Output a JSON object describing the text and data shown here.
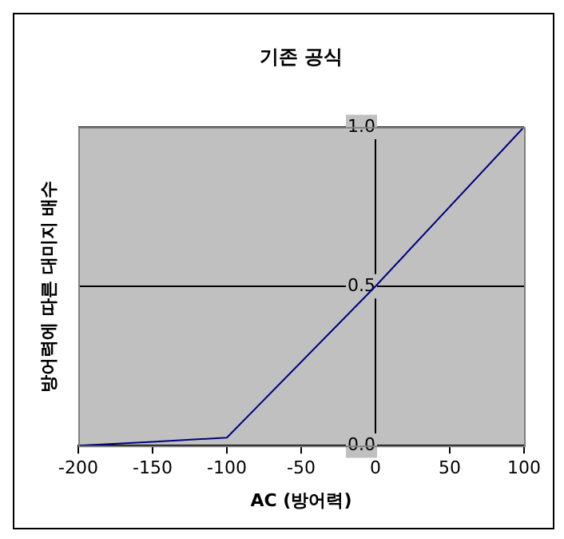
{
  "chart_data": {
    "type": "line",
    "title": "기존 공식",
    "xlabel": "AC (방어력)",
    "ylabel": "방어력에 따른 대미지 배수",
    "x": [
      -200,
      -150,
      -100,
      0,
      100
    ],
    "series": [
      {
        "color": "#000080",
        "values": [
          0,
          0.012,
          0.025,
          0.5,
          1.0
        ]
      }
    ],
    "xlim": [
      -200,
      100
    ],
    "xticks": [
      -200,
      -150,
      -100,
      -50,
      0,
      50,
      100
    ],
    "ylim": [
      0,
      1
    ],
    "yticks": [
      {
        "value": 0,
        "label": "0.0"
      },
      {
        "value": 0.5,
        "label": "0.5"
      },
      {
        "value": 1,
        "label": "1.0"
      }
    ],
    "grid": "y",
    "legend": false,
    "marker": "none",
    "line_style": "solid"
  }
}
